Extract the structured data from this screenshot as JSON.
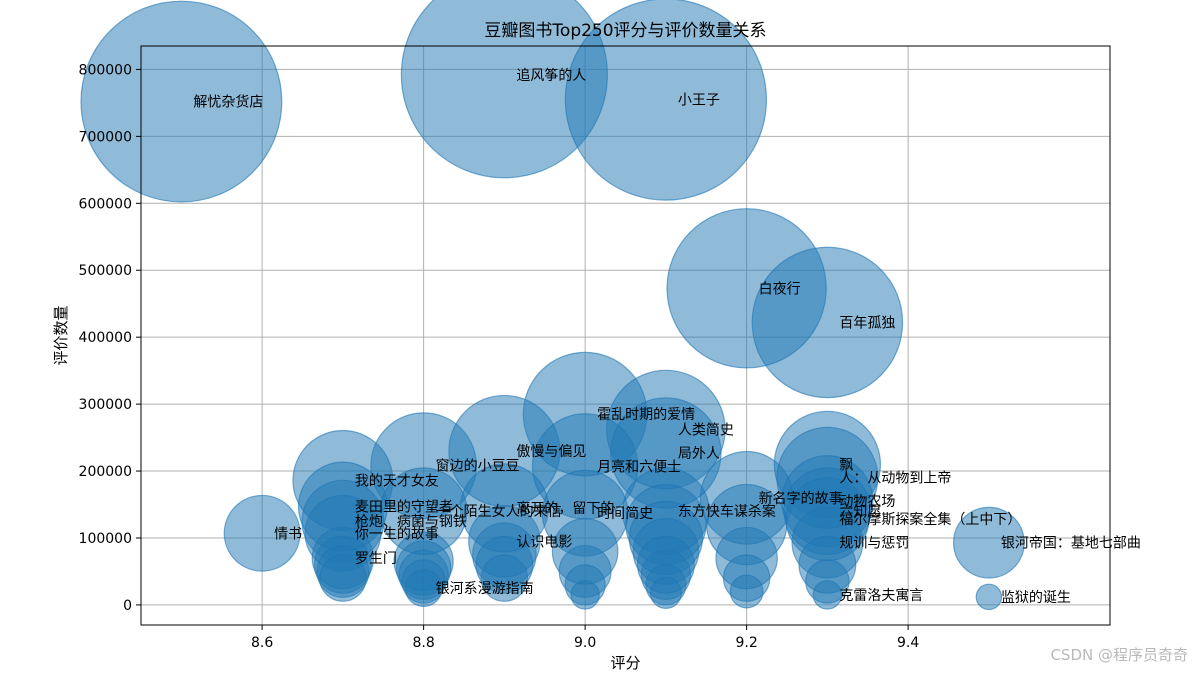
{
  "chart_data": {
    "type": "scatter",
    "title": "豆瓣图书Top250评分与评价数量关系",
    "xlabel": "评分",
    "ylabel": "评价数量",
    "xlim": [
      8.45,
      9.65
    ],
    "ylim": [
      -30000,
      835000
    ],
    "xticks": [
      8.6,
      8.8,
      9.0,
      9.2,
      9.4
    ],
    "xtick_labels": [
      "8.6",
      "8.8",
      "9.0",
      "9.2",
      "9.4"
    ],
    "yticks": [
      0,
      100000,
      200000,
      300000,
      400000,
      500000,
      600000,
      700000,
      800000
    ],
    "ytick_labels": [
      "0",
      "100000",
      "200000",
      "300000",
      "400000",
      "500000",
      "600000",
      "700000",
      "800000"
    ],
    "grid": true,
    "bubble_color": "#1f77b4",
    "bubble_alpha": 0.5,
    "size_encoding": "bubble size proportional to 评价数量",
    "points": [
      {
        "label": "解忧杂货店",
        "x": 8.5,
        "y": 752000
      },
      {
        "label": "追风筝的人",
        "x": 8.9,
        "y": 792000
      },
      {
        "label": "小王子",
        "x": 9.1,
        "y": 755000
      },
      {
        "label": "白夜行",
        "x": 9.2,
        "y": 473000
      },
      {
        "label": "百年孤独",
        "x": 9.3,
        "y": 422000
      },
      {
        "label": "霍乱时期的爱情",
        "x": 9.0,
        "y": 285000
      },
      {
        "label": "人类简史",
        "x": 9.1,
        "y": 262000
      },
      {
        "label": "局外人",
        "x": 9.1,
        "y": 227000
      },
      {
        "label": "傲慢与偏见",
        "x": 8.9,
        "y": 230000
      },
      {
        "label": "窗边的小豆豆",
        "x": 8.8,
        "y": 208000
      },
      {
        "label": "月亮和六便士",
        "x": 9.0,
        "y": 207000
      },
      {
        "label": "飘",
        "x": 9.3,
        "y": 210000
      },
      {
        "label": "我的天才女友",
        "x": 8.7,
        "y": 186000
      },
      {
        "label": "人：从动物到上帝",
        "x": 9.3,
        "y": 190000
      },
      {
        "label": "新名字的故事",
        "x": 9.2,
        "y": 160000
      },
      {
        "label": "动物农场",
        "x": 9.3,
        "y": 155000
      },
      {
        "label": "麦田里的守望者",
        "x": 8.7,
        "y": 147000
      },
      {
        "label": "一个陌生女人的来信",
        "x": 8.8,
        "y": 140000
      },
      {
        "label": "离开的，留下的",
        "x": 8.9,
        "y": 145000
      },
      {
        "label": "时间简史",
        "x": 9.0,
        "y": 137000
      },
      {
        "label": "东方快车谋杀案",
        "x": 9.1,
        "y": 140000
      },
      {
        "label": "六知愿",
        "x": 9.3,
        "y": 140000
      },
      {
        "label": "福尔摩斯探案全集（上中下）",
        "x": 9.3,
        "y": 128000
      },
      {
        "label": "枪炮、病菌与钢铁",
        "x": 8.7,
        "y": 125000
      },
      {
        "label": "你一生的故事",
        "x": 8.7,
        "y": 107000
      },
      {
        "label": "情书",
        "x": 8.6,
        "y": 107000
      },
      {
        "label": "认识电影",
        "x": 8.9,
        "y": 95000
      },
      {
        "label": "规训与惩罚",
        "x": 9.3,
        "y": 93000
      },
      {
        "label": "银河帝国：基地七部曲",
        "x": 9.5,
        "y": 93000
      },
      {
        "label": "罗生门",
        "x": 8.7,
        "y": 70000
      },
      {
        "label": "银河系漫游指南",
        "x": 8.8,
        "y": 25000
      },
      {
        "label": "克雷洛夫寓言",
        "x": 9.3,
        "y": 15000
      },
      {
        "label": "监狱的诞生",
        "x": 9.5,
        "y": 12000
      },
      {
        "label": "",
        "x": 8.7,
        "y": 60000
      },
      {
        "label": "",
        "x": 8.7,
        "y": 50000
      },
      {
        "label": "",
        "x": 8.7,
        "y": 40000
      },
      {
        "label": "",
        "x": 8.8,
        "y": 65000
      },
      {
        "label": "",
        "x": 8.8,
        "y": 55000
      },
      {
        "label": "",
        "x": 8.8,
        "y": 45000
      },
      {
        "label": "",
        "x": 8.8,
        "y": 35000
      },
      {
        "label": "",
        "x": 8.9,
        "y": 75000
      },
      {
        "label": "",
        "x": 8.9,
        "y": 60000
      },
      {
        "label": "",
        "x": 8.9,
        "y": 40000
      },
      {
        "label": "",
        "x": 9.0,
        "y": 80000
      },
      {
        "label": "",
        "x": 9.0,
        "y": 50000
      },
      {
        "label": "",
        "x": 9.0,
        "y": 30000
      },
      {
        "label": "",
        "x": 9.0,
        "y": 15000
      },
      {
        "label": "",
        "x": 9.1,
        "y": 120000
      },
      {
        "label": "",
        "x": 9.1,
        "y": 100000
      },
      {
        "label": "",
        "x": 9.1,
        "y": 80000
      },
      {
        "label": "",
        "x": 9.1,
        "y": 60000
      },
      {
        "label": "",
        "x": 9.1,
        "y": 45000
      },
      {
        "label": "",
        "x": 9.1,
        "y": 30000
      },
      {
        "label": "",
        "x": 9.1,
        "y": 18000
      },
      {
        "label": "",
        "x": 9.2,
        "y": 120000
      },
      {
        "label": "",
        "x": 9.2,
        "y": 70000
      },
      {
        "label": "",
        "x": 9.2,
        "y": 40000
      },
      {
        "label": "",
        "x": 9.2,
        "y": 20000
      },
      {
        "label": "",
        "x": 9.3,
        "y": 60000
      },
      {
        "label": "",
        "x": 9.3,
        "y": 35000
      }
    ]
  },
  "watermark": "CSDN @程序员奇奇"
}
